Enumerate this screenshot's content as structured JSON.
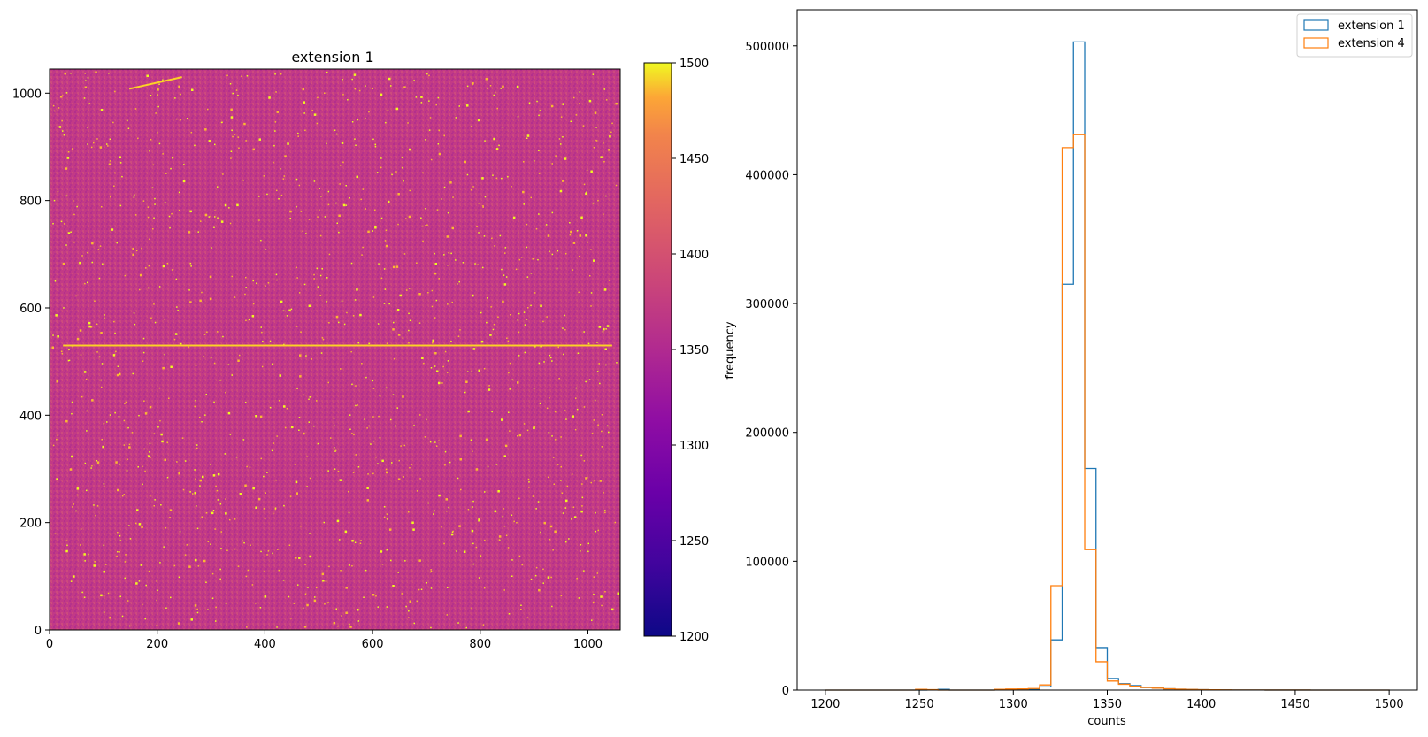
{
  "chart_data": [
    {
      "type": "heatmap",
      "title": "extension 1",
      "xlabel": "",
      "ylabel": "",
      "xlim": [
        0,
        1060
      ],
      "ylim": [
        0,
        1045
      ],
      "x_ticks": [
        0,
        200,
        400,
        600,
        800,
        1000
      ],
      "y_ticks": [
        0,
        200,
        400,
        600,
        800,
        1000
      ],
      "colormap": "plasma",
      "colorbar": {
        "vmin": 1200,
        "vmax": 1500,
        "ticks": [
          1200,
          1250,
          1300,
          1350,
          1400,
          1450,
          1500
        ]
      },
      "background_level": 1335,
      "grid": false,
      "features": [
        {
          "kind": "horizontal-streak",
          "y": 530,
          "x_from": 25,
          "x_to": 1045,
          "value": 1460
        },
        {
          "kind": "diagonal-streak",
          "x_from": 148,
          "y_from": 1008,
          "x_to": 246,
          "y_to": 1030,
          "value": 1460
        },
        {
          "kind": "scattered-hot-pixels",
          "value": 1460
        }
      ]
    },
    {
      "type": "histogram",
      "title": "",
      "xlabel": "counts",
      "ylabel": "frequency",
      "xlim": [
        1185,
        1515
      ],
      "ylim": [
        0,
        528000
      ],
      "x_ticks": [
        1200,
        1250,
        1300,
        1350,
        1400,
        1450,
        1500
      ],
      "y_ticks": [
        0,
        100000,
        200000,
        300000,
        400000,
        500000
      ],
      "histtype": "step",
      "bin_edges": [
        1200,
        1206,
        1212,
        1218,
        1224,
        1230,
        1236,
        1242,
        1248,
        1254,
        1260,
        1266,
        1272,
        1278,
        1284,
        1290,
        1296,
        1302,
        1308,
        1314,
        1320,
        1326,
        1332,
        1338,
        1344,
        1350,
        1356,
        1362,
        1368,
        1374,
        1380,
        1386,
        1392,
        1398,
        1404,
        1410,
        1416,
        1422,
        1428,
        1434,
        1440,
        1446,
        1452,
        1458,
        1464,
        1470,
        1476,
        1482,
        1488,
        1494,
        1500
      ],
      "legend_position": "top-right",
      "grid": false,
      "series": [
        {
          "name": "extension 1",
          "color": "#1f77b4",
          "values": [
            0,
            0,
            0,
            0,
            0,
            0,
            0,
            0,
            0,
            200,
            600,
            0,
            0,
            0,
            0,
            200,
            400,
            600,
            800,
            2500,
            39000,
            315000,
            503000,
            172000,
            33000,
            9000,
            5000,
            3500,
            2000,
            1500,
            1000,
            700,
            500,
            300,
            200,
            150,
            100,
            80,
            60,
            50,
            40,
            30,
            25,
            20,
            15,
            10,
            10,
            5,
            5,
            5
          ]
        },
        {
          "name": "extension 4",
          "color": "#ff7f0e",
          "values": [
            0,
            0,
            0,
            0,
            0,
            0,
            0,
            0,
            600,
            300,
            0,
            0,
            0,
            0,
            0,
            600,
            800,
            900,
            1200,
            4000,
            81000,
            421000,
            431000,
            109000,
            22000,
            7000,
            4500,
            3000,
            2000,
            1500,
            1000,
            700,
            500,
            300,
            200,
            150,
            100,
            80,
            60,
            50,
            40,
            30,
            25,
            20,
            15,
            10,
            10,
            5,
            5,
            5
          ]
        }
      ]
    }
  ]
}
